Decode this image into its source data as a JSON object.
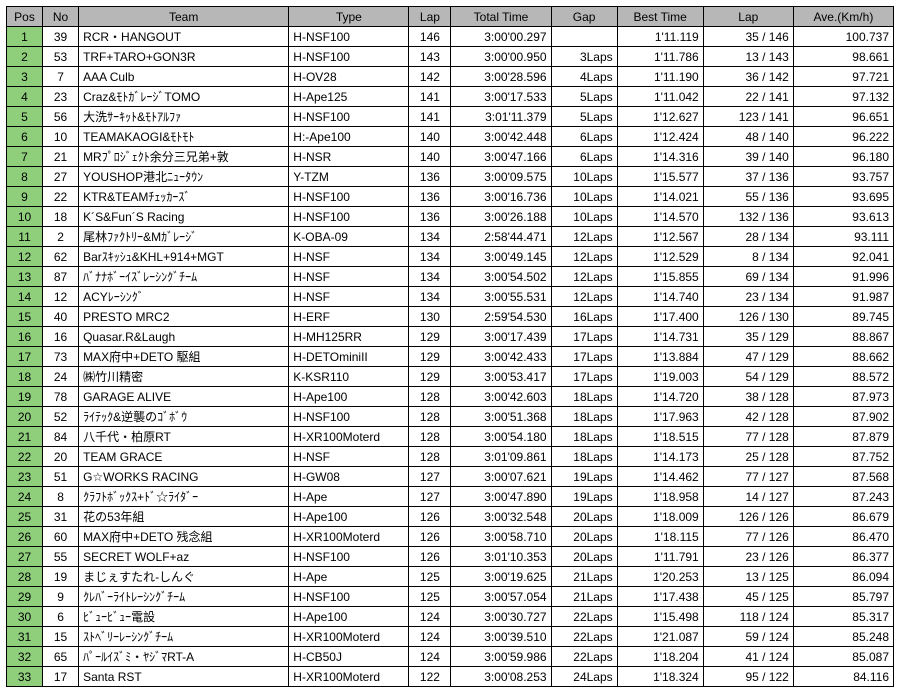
{
  "table": {
    "columns": [
      "Pos",
      "No",
      "Team",
      "Type",
      "Lap",
      "Total Time",
      "Gap",
      "Best Time",
      "Lap",
      "Ave.(Km/h)"
    ],
    "header_bg": "#b7b7b7",
    "pos_bg": "#8fcf7c",
    "border_color": "#000000",
    "font_size": 12,
    "rows": [
      {
        "pos": "1",
        "no": "39",
        "team": "RCR・HANGOUT",
        "type": "H-NSF100",
        "lap": "146",
        "total": "3:00'00.297",
        "gap": "",
        "best": "1'11.119",
        "lapc": "35 / 146",
        "ave": "100.737"
      },
      {
        "pos": "2",
        "no": "53",
        "team": "TRF+TARO+GON3R",
        "type": "H-NSF100",
        "lap": "143",
        "total": "3:00'00.950",
        "gap": "3Laps",
        "best": "1'11.786",
        "lapc": "13 / 143",
        "ave": "98.661"
      },
      {
        "pos": "3",
        "no": "7",
        "team": "AAA Culb",
        "type": "H-OV28",
        "lap": "142",
        "total": "3:00'28.596",
        "gap": "4Laps",
        "best": "1'11.190",
        "lapc": "36 / 142",
        "ave": "97.721"
      },
      {
        "pos": "4",
        "no": "23",
        "team": "Craz&ﾓﾄｶﾞﾚｰｼﾞTOMO",
        "type": "H-Ape125",
        "lap": "141",
        "total": "3:00'17.533",
        "gap": "5Laps",
        "best": "1'11.042",
        "lapc": "22 / 141",
        "ave": "97.132"
      },
      {
        "pos": "5",
        "no": "56",
        "team": "大洗ｻｰｷｯﾄ&ﾓﾄｱﾙﾌｧ",
        "type": "H-NSF100",
        "lap": "141",
        "total": "3:01'11.379",
        "gap": "5Laps",
        "best": "1'12.627",
        "lapc": "123 / 141",
        "ave": "96.651"
      },
      {
        "pos": "6",
        "no": "10",
        "team": "TEAMAKAOGI&ﾓﾄﾓﾄ",
        "type": "H:-Ape100",
        "lap": "140",
        "total": "3:00'42.448",
        "gap": "6Laps",
        "best": "1'12.424",
        "lapc": "48 / 140",
        "ave": "96.222"
      },
      {
        "pos": "7",
        "no": "21",
        "team": "MRﾌﾟﾛｼﾞｪｸﾄ余分三兄弟+敦",
        "type": "H-NSR",
        "lap": "140",
        "total": "3:00'47.166",
        "gap": "6Laps",
        "best": "1'14.316",
        "lapc": "39 / 140",
        "ave": "96.180"
      },
      {
        "pos": "8",
        "no": "27",
        "team": "YOUSHOP港北ﾆｭｰﾀｳﾝ",
        "type": "Y-TZM",
        "lap": "136",
        "total": "3:00'09.575",
        "gap": "10Laps",
        "best": "1'15.577",
        "lapc": "37 / 136",
        "ave": "93.757"
      },
      {
        "pos": "9",
        "no": "22",
        "team": "KTR&TEAMﾁｪｯｶｰｽﾞ",
        "type": "H-NSF100",
        "lap": "136",
        "total": "3:00'16.736",
        "gap": "10Laps",
        "best": "1'14.021",
        "lapc": "55 / 136",
        "ave": "93.695"
      },
      {
        "pos": "10",
        "no": "18",
        "team": "K´S&Fun´S Racing",
        "type": "H-NSF100",
        "lap": "136",
        "total": "3:00'26.188",
        "gap": "10Laps",
        "best": "1'14.570",
        "lapc": "132 / 136",
        "ave": "93.613"
      },
      {
        "pos": "11",
        "no": "2",
        "team": "尾林ﾌｧｸﾄﾘｰ&Mｶﾞﾚｰｼﾞ",
        "type": "K-OBA-09",
        "lap": "134",
        "total": "2:58'44.471",
        "gap": "12Laps",
        "best": "1'12.567",
        "lapc": "28 / 134",
        "ave": "93.111"
      },
      {
        "pos": "12",
        "no": "62",
        "team": "Barｽｷｯｼｭ&KHL+914+MGT",
        "type": "H-NSF",
        "lap": "134",
        "total": "3:00'49.145",
        "gap": "12Laps",
        "best": "1'12.529",
        "lapc": "8 / 134",
        "ave": "92.041"
      },
      {
        "pos": "13",
        "no": "87",
        "team": "ﾊﾞﾅﾅﾎﾞｰｲｽﾞﾚｰｼﾝｸﾞﾁｰﾑ",
        "type": "H-NSF",
        "lap": "134",
        "total": "3:00'54.502",
        "gap": "12Laps",
        "best": "1'15.855",
        "lapc": "69 / 134",
        "ave": "91.996"
      },
      {
        "pos": "14",
        "no": "12",
        "team": "ACYﾚｰｼﾝｸﾞ",
        "type": "H-NSF",
        "lap": "134",
        "total": "3:00'55.531",
        "gap": "12Laps",
        "best": "1'14.740",
        "lapc": "23 / 134",
        "ave": "91.987"
      },
      {
        "pos": "15",
        "no": "40",
        "team": "PRESTO MRC2",
        "type": "H-ERF",
        "lap": "130",
        "total": "2:59'54.530",
        "gap": "16Laps",
        "best": "1'17.400",
        "lapc": "126 / 130",
        "ave": "89.745"
      },
      {
        "pos": "16",
        "no": "16",
        "team": "Quasar.R&Laugh",
        "type": "H-MH125RR",
        "lap": "129",
        "total": "3:00'17.439",
        "gap": "17Laps",
        "best": "1'14.731",
        "lapc": "35 / 129",
        "ave": "88.867"
      },
      {
        "pos": "17",
        "no": "73",
        "team": "MAX府中+DETO 駆組",
        "type": "H-DETOminiII",
        "lap": "129",
        "total": "3:00'42.433",
        "gap": "17Laps",
        "best": "1'13.884",
        "lapc": "47 / 129",
        "ave": "88.662"
      },
      {
        "pos": "18",
        "no": "24",
        "team": "㈱竹川精密",
        "type": "K-KSR110",
        "lap": "129",
        "total": "3:00'53.417",
        "gap": "17Laps",
        "best": "1'19.003",
        "lapc": "54 / 129",
        "ave": "88.572"
      },
      {
        "pos": "19",
        "no": "78",
        "team": "GARAGE ALIVE",
        "type": "H-Ape100",
        "lap": "128",
        "total": "3:00'42.603",
        "gap": "18Laps",
        "best": "1'14.720",
        "lapc": "38 / 128",
        "ave": "87.973"
      },
      {
        "pos": "20",
        "no": "52",
        "team": "ﾗｲﾃｯｸ&逆襲のｺﾞﾎﾞｳ",
        "type": "H-NSF100",
        "lap": "128",
        "total": "3:00'51.368",
        "gap": "18Laps",
        "best": "1'17.963",
        "lapc": "42 / 128",
        "ave": "87.902"
      },
      {
        "pos": "21",
        "no": "84",
        "team": "八千代・柏原RT",
        "type": "H-XR100Moterd",
        "lap": "128",
        "total": "3:00'54.180",
        "gap": "18Laps",
        "best": "1'18.515",
        "lapc": "77 / 128",
        "ave": "87.879"
      },
      {
        "pos": "22",
        "no": "20",
        "team": "TEAM GRACE",
        "type": "H-NSF",
        "lap": "128",
        "total": "3:01'09.861",
        "gap": "18Laps",
        "best": "1'14.173",
        "lapc": "25 / 128",
        "ave": "87.752"
      },
      {
        "pos": "23",
        "no": "51",
        "team": "G☆WORKS RACING",
        "type": "H-GW08",
        "lap": "127",
        "total": "3:00'07.621",
        "gap": "19Laps",
        "best": "1'14.462",
        "lapc": "77 / 127",
        "ave": "87.568"
      },
      {
        "pos": "24",
        "no": "8",
        "team": "ｸﾗﾌﾄﾎﾞｯｸｽ+ﾄﾞ☆ﾗｲﾀﾞｰ",
        "type": "H-Ape",
        "lap": "127",
        "total": "3:00'47.890",
        "gap": "19Laps",
        "best": "1'18.958",
        "lapc": "14 / 127",
        "ave": "87.243"
      },
      {
        "pos": "25",
        "no": "31",
        "team": "花の53年組",
        "type": "H-Ape100",
        "lap": "126",
        "total": "3:00'32.548",
        "gap": "20Laps",
        "best": "1'18.009",
        "lapc": "126 / 126",
        "ave": "86.679"
      },
      {
        "pos": "26",
        "no": "60",
        "team": "MAX府中+DETO 残念組",
        "type": "H-XR100Moterd",
        "lap": "126",
        "total": "3:00'58.710",
        "gap": "20Laps",
        "best": "1'18.115",
        "lapc": "77 / 126",
        "ave": "86.470"
      },
      {
        "pos": "27",
        "no": "55",
        "team": "SECRET WOLF+az",
        "type": "H-NSF100",
        "lap": "126",
        "total": "3:01'10.353",
        "gap": "20Laps",
        "best": "1'11.791",
        "lapc": "23 / 126",
        "ave": "86.377"
      },
      {
        "pos": "28",
        "no": "19",
        "team": "まじぇすたれ-しんぐ",
        "type": "H-Ape",
        "lap": "125",
        "total": "3:00'19.625",
        "gap": "21Laps",
        "best": "1'20.253",
        "lapc": "13 / 125",
        "ave": "86.094"
      },
      {
        "pos": "29",
        "no": "9",
        "team": "ｸﾚﾊﾞｰﾗｲﾄﾚｰｼﾝｸﾞﾁｰﾑ",
        "type": "H-NSF100",
        "lap": "125",
        "total": "3:00'57.054",
        "gap": "21Laps",
        "best": "1'17.438",
        "lapc": "45 / 125",
        "ave": "85.797"
      },
      {
        "pos": "30",
        "no": "6",
        "team": "ﾋﾞｭｰﾋﾞｭｰ電設",
        "type": "H-Ape100",
        "lap": "124",
        "total": "3:00'30.727",
        "gap": "22Laps",
        "best": "1'15.498",
        "lapc": "118 / 124",
        "ave": "85.317"
      },
      {
        "pos": "31",
        "no": "15",
        "team": "ｽﾄﾍﾞﾘｰﾚｰｼﾝｸﾞﾁｰﾑ",
        "type": "H-XR100Moterd",
        "lap": "124",
        "total": "3:00'39.510",
        "gap": "22Laps",
        "best": "1'21.087",
        "lapc": "59 / 124",
        "ave": "85.248"
      },
      {
        "pos": "32",
        "no": "65",
        "team": "ﾊﾟｰﾙｲｽﾞﾐ・ﾔｼﾞﾏRT-A",
        "type": "H-CB50J",
        "lap": "124",
        "total": "3:00'59.986",
        "gap": "22Laps",
        "best": "1'18.204",
        "lapc": "41 / 124",
        "ave": "85.087"
      },
      {
        "pos": "33",
        "no": "17",
        "team": "Santa RST",
        "type": "H-XR100Moterd",
        "lap": "122",
        "total": "3:00'08.253",
        "gap": "24Laps",
        "best": "1'18.324",
        "lapc": "95 / 122",
        "ave": "84.116"
      }
    ]
  }
}
